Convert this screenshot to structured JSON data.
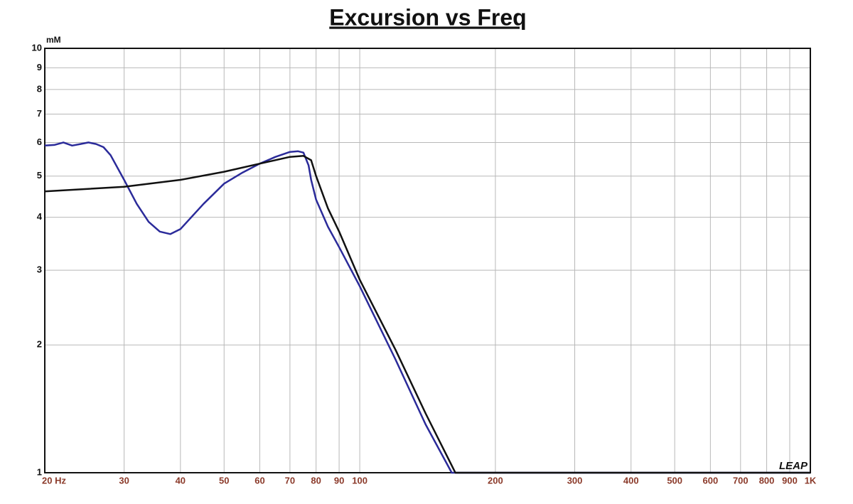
{
  "chart_data": {
    "type": "line",
    "title": "Excursion vs Freq",
    "y_unit": "mM",
    "logo": "LEAP",
    "xscale": "log",
    "yscale": "log",
    "grid": true,
    "xlim": [
      20,
      1000
    ],
    "ylim": [
      1,
      10
    ],
    "xticks": [
      {
        "value": 20,
        "label": "20  Hz"
      },
      30,
      40,
      50,
      60,
      70,
      80,
      90,
      100,
      200,
      300,
      400,
      500,
      600,
      700,
      800,
      900,
      {
        "value": 1000,
        "label": "1K"
      }
    ],
    "yticks": [
      1,
      2,
      3,
      4,
      5,
      6,
      7,
      8,
      9,
      10
    ],
    "series": [
      {
        "color": "#2b2b9a",
        "x": [
          20,
          21,
          22,
          23,
          24,
          25,
          26,
          27,
          28,
          30,
          32,
          34,
          36,
          38,
          40,
          45,
          50,
          55,
          60,
          65,
          70,
          73,
          75,
          77,
          78,
          80,
          85,
          90,
          100,
          120,
          140,
          160,
          200,
          1000
        ],
        "values": [
          5.9,
          5.92,
          6.0,
          5.9,
          5.95,
          6.0,
          5.95,
          5.85,
          5.6,
          4.9,
          4.3,
          3.9,
          3.7,
          3.65,
          3.75,
          4.3,
          4.8,
          5.1,
          5.35,
          5.55,
          5.7,
          5.72,
          5.68,
          5.3,
          4.9,
          4.4,
          3.8,
          3.4,
          2.75,
          1.85,
          1.3,
          1.0,
          1.0,
          1.0
        ]
      },
      {
        "color": "#111111",
        "x": [
          20,
          30,
          40,
          50,
          60,
          70,
          75,
          78,
          80,
          85,
          90,
          100,
          120,
          140,
          163,
          200,
          1000
        ],
        "values": [
          4.6,
          4.72,
          4.9,
          5.12,
          5.35,
          5.55,
          5.58,
          5.45,
          5.0,
          4.2,
          3.7,
          2.85,
          1.95,
          1.38,
          1.0,
          1.0,
          1.0
        ]
      }
    ]
  }
}
